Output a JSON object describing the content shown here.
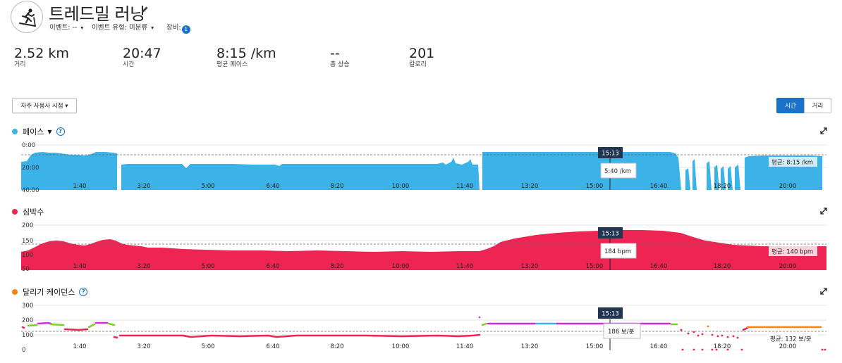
{
  "header": {
    "activity_icon": "treadmill-runner-icon",
    "title": "트레드밀 러닝",
    "event_label": "이벤트: --",
    "event_type_label": "이벤트 유형: 미분류",
    "equipment_label": "장비:",
    "equipment_count": "1"
  },
  "stats": [
    {
      "value": "2.52 km",
      "label": "거리"
    },
    {
      "value": "20:47",
      "label": "시간"
    },
    {
      "value": "8:15 /km",
      "label": "평균 페이스"
    },
    {
      "value": "--",
      "label": "총 상승"
    },
    {
      "value": "201",
      "label": "칼로리"
    }
  ],
  "toolbar": {
    "custom_view_label": "자주 사용사 시점 ▾",
    "toggle_time": "시간",
    "toggle_distance": "거리",
    "active_toggle": "time"
  },
  "colors": {
    "pace": "#3bb2e8",
    "heart_rate": "#ee2453",
    "cadence_dot": "#f5850f",
    "accent": "#1a73c8",
    "marker_bg": "#1f3550"
  },
  "x_ticks": [
    "1:40",
    "3:20",
    "5:00",
    "6:40",
    "8:20",
    "10:00",
    "11:40",
    "13:20",
    "15:00",
    "16:40",
    "18:20",
    "20:00"
  ],
  "cursor_time": "15:13",
  "charts": [
    {
      "key": "pace",
      "title": "페이스",
      "y_ticks": [
        "0:00",
        "20:00",
        "40:00"
      ],
      "tooltip": "5:40 /km",
      "average_label": "평균: 8:15 /km"
    },
    {
      "key": "heart_rate",
      "title": "심박수",
      "y_ticks": [
        "200",
        "150",
        "100",
        "50"
      ],
      "tooltip": "184 bpm",
      "average_label": "평균: 140 bpm"
    },
    {
      "key": "cadence",
      "title": "달리기 케이던스",
      "y_ticks": [
        "300",
        "200",
        "100",
        "0"
      ],
      "tooltip": "186 보/분",
      "average_label": "평균: 132 보/분"
    }
  ]
}
